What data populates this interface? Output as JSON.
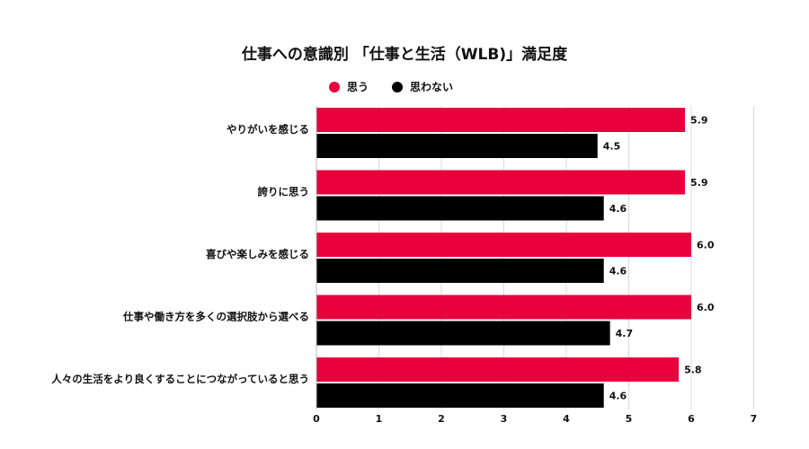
{
  "chart_data": {
    "type": "bar",
    "orientation": "horizontal",
    "title": "仕事への意識別 「仕事と生活（WLB)」満足度",
    "categories": [
      "やりがいを感じる",
      "誇りに思う",
      "喜びや楽しみを感じる",
      "仕事や働き方を多くの選択肢から選べる",
      "人々の生活をより良くすることにつながっていると思う"
    ],
    "series": [
      {
        "name": "思う",
        "color": "#E8003D",
        "values": [
          5.9,
          5.9,
          6.0,
          6.0,
          5.8
        ]
      },
      {
        "name": "思わない",
        "color": "#000000",
        "values": [
          4.5,
          4.6,
          4.6,
          4.7,
          4.6
        ]
      }
    ],
    "xlim": [
      0,
      7
    ],
    "xticks": [
      0,
      1,
      2,
      3,
      4,
      5,
      6,
      7
    ],
    "grid": true,
    "legend_position": "top"
  }
}
